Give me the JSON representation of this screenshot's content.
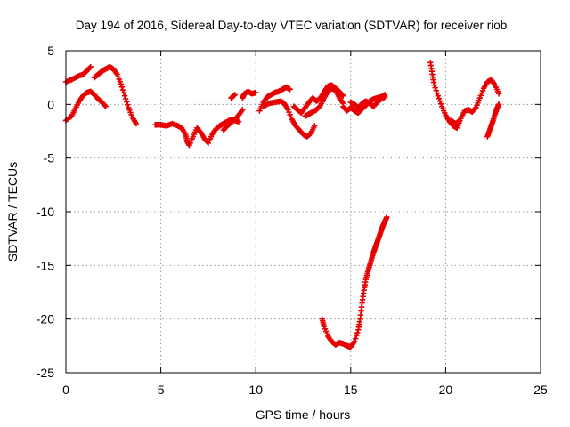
{
  "chart_data": {
    "type": "scatter",
    "title": "Day 194 of 2016, Sidereal Day-to-day VTEC variation (SDTVAR) for receiver riob",
    "xlabel": "GPS time / hours",
    "ylabel": "SDTVAR / TECUs",
    "xlim": [
      0,
      25
    ],
    "ylim": [
      -25,
      5
    ],
    "xticks": [
      "0",
      "5",
      "10",
      "15",
      "20",
      "25"
    ],
    "yticks": [
      "5",
      "0",
      "-5",
      "-10",
      "-15",
      "-20",
      "-25"
    ],
    "grid": true,
    "marker": "plus",
    "color": "#e60000",
    "segments": [
      {
        "points": [
          [
            0,
            2.1
          ],
          [
            0.3,
            2.3
          ],
          [
            0.6,
            2.6
          ],
          [
            0.9,
            2.8
          ],
          [
            1.1,
            3.1
          ],
          [
            1.3,
            3.5
          ]
        ]
      },
      {
        "points": [
          [
            0,
            -1.5
          ],
          [
            0.3,
            -1.1
          ],
          [
            0.5,
            -0.4
          ],
          [
            0.7,
            0.3
          ],
          [
            0.9,
            0.8
          ],
          [
            1.1,
            1.1
          ],
          [
            1.3,
            1.2
          ],
          [
            1.5,
            0.9
          ],
          [
            1.7,
            0.5
          ],
          [
            1.9,
            0.2
          ],
          [
            2.1,
            -0.2
          ]
        ]
      },
      {
        "points": [
          [
            1.5,
            2.5
          ],
          [
            1.7,
            2.8
          ],
          [
            1.9,
            3.1
          ],
          [
            2.1,
            3.3
          ],
          [
            2.3,
            3.5
          ],
          [
            2.5,
            3.3
          ],
          [
            2.7,
            2.8
          ],
          [
            2.9,
            1.9
          ],
          [
            3.1,
            0.8
          ],
          [
            3.3,
            -0.3
          ],
          [
            3.5,
            -1.2
          ],
          [
            3.7,
            -1.8
          ]
        ]
      },
      {
        "points": [
          [
            4.7,
            -1.9
          ],
          [
            5.0,
            -1.9
          ],
          [
            5.3,
            -2.0
          ],
          [
            5.6,
            -1.8
          ],
          [
            5.9,
            -2.0
          ],
          [
            6.1,
            -2.2
          ],
          [
            6.3,
            -2.8
          ],
          [
            6.4,
            -3.5
          ],
          [
            6.5,
            -3.8
          ],
          [
            6.7,
            -3.0
          ],
          [
            6.9,
            -2.2
          ],
          [
            7.1,
            -2.6
          ],
          [
            7.3,
            -3.2
          ],
          [
            7.5,
            -3.6
          ],
          [
            7.7,
            -2.8
          ],
          [
            7.9,
            -2.3
          ],
          [
            8.1,
            -2.0
          ],
          [
            8.3,
            -1.8
          ],
          [
            8.5,
            -1.6
          ],
          [
            8.7,
            -1.4
          ],
          [
            8.9,
            -1.5
          ],
          [
            9.1,
            -1.6
          ]
        ]
      },
      {
        "points": [
          [
            8.3,
            -2.4
          ],
          [
            8.5,
            -2.0
          ],
          [
            8.7,
            -1.7
          ],
          [
            8.9,
            -1.4
          ],
          [
            9.1,
            -1.0
          ],
          [
            9.3,
            -0.5
          ]
        ]
      },
      {
        "points": [
          [
            8.7,
            0.6
          ],
          [
            8.9,
            0.9
          ]
        ]
      },
      {
        "points": [
          [
            9.3,
            0.6
          ],
          [
            9.4,
            1.0
          ],
          [
            9.6,
            1.2
          ],
          [
            9.8,
            1.0
          ],
          [
            10.0,
            1.1
          ]
        ]
      },
      {
        "points": [
          [
            10.2,
            -0.6
          ],
          [
            10.4,
            0.2
          ],
          [
            10.6,
            0.7
          ],
          [
            10.8,
            0.9
          ],
          [
            11.0,
            1.1
          ],
          [
            11.2,
            1.2
          ],
          [
            11.4,
            1.4
          ],
          [
            11.6,
            1.6
          ],
          [
            11.8,
            1.4
          ]
        ]
      },
      {
        "points": [
          [
            10.4,
            -0.2
          ],
          [
            10.7,
            0.1
          ],
          [
            11.0,
            0.2
          ],
          [
            11.3,
            0.3
          ],
          [
            11.5,
            0.1
          ],
          [
            11.7,
            -0.5
          ],
          [
            11.9,
            -1.4
          ],
          [
            12.1,
            -2.0
          ],
          [
            12.3,
            -2.4
          ],
          [
            12.5,
            -2.8
          ],
          [
            12.7,
            -3.0
          ],
          [
            12.9,
            -2.7
          ],
          [
            13.1,
            -2.0
          ]
        ]
      },
      {
        "points": [
          [
            12.0,
            -0.2
          ],
          [
            12.2,
            -0.5
          ],
          [
            12.4,
            -0.8
          ],
          [
            12.6,
            -0.3
          ],
          [
            12.8,
            0.2
          ],
          [
            13.0,
            0.6
          ],
          [
            13.2,
            0.3
          ],
          [
            13.4,
            0.6
          ],
          [
            13.6,
            1.2
          ],
          [
            13.8,
            1.7
          ],
          [
            14.0,
            1.8
          ],
          [
            14.2,
            1.5
          ],
          [
            14.4,
            1.2
          ],
          [
            14.6,
            0.8
          ]
        ]
      },
      {
        "points": [
          [
            12.6,
            -1.1
          ],
          [
            12.8,
            -0.9
          ],
          [
            13.0,
            -0.7
          ],
          [
            13.2,
            -0.5
          ],
          [
            13.4,
            -0.1
          ],
          [
            13.6,
            0.6
          ],
          [
            13.8,
            1.2
          ],
          [
            14.0,
            1.5
          ],
          [
            14.2,
            1.3
          ],
          [
            14.4,
            0.6
          ],
          [
            14.6,
            0.1
          ]
        ]
      },
      {
        "points": [
          [
            14.6,
            -0.2
          ],
          [
            14.8,
            -0.6
          ],
          [
            15.0,
            -0.3
          ],
          [
            15.2,
            -0.6
          ],
          [
            15.4,
            -0.8
          ],
          [
            15.6,
            -0.4
          ],
          [
            15.8,
            -0.1
          ],
          [
            16.0,
            0.3
          ],
          [
            16.2,
            0.5
          ],
          [
            16.4,
            0.6
          ],
          [
            16.6,
            0.7
          ],
          [
            16.8,
            0.9
          ]
        ]
      },
      {
        "points": [
          [
            15.0,
            0.2
          ],
          [
            15.2,
            0.0
          ],
          [
            15.4,
            -0.3
          ],
          [
            15.6,
            0.1
          ],
          [
            15.8,
            0.3
          ],
          [
            16.0,
            0.1
          ],
          [
            16.2,
            -0.2
          ],
          [
            16.4,
            0.2
          ],
          [
            16.6,
            0.5
          ],
          [
            16.8,
            0.7
          ]
        ]
      },
      {
        "points": [
          [
            13.5,
            -20.0
          ],
          [
            13.6,
            -20.7
          ],
          [
            13.8,
            -21.6
          ],
          [
            14.0,
            -22.1
          ],
          [
            14.2,
            -22.4
          ],
          [
            14.4,
            -22.2
          ],
          [
            14.6,
            -22.3
          ],
          [
            14.8,
            -22.5
          ],
          [
            15.0,
            -22.6
          ],
          [
            15.2,
            -22.1
          ],
          [
            15.4,
            -21.0
          ],
          [
            15.5,
            -20.0
          ],
          [
            15.6,
            -18.5
          ],
          [
            15.7,
            -17.3
          ],
          [
            15.8,
            -16.3
          ],
          [
            15.9,
            -15.6
          ],
          [
            16.0,
            -15.0
          ],
          [
            16.1,
            -14.4
          ],
          [
            16.2,
            -13.8
          ],
          [
            16.3,
            -13.3
          ],
          [
            16.4,
            -12.8
          ],
          [
            16.5,
            -12.3
          ],
          [
            16.6,
            -11.8
          ],
          [
            16.7,
            -11.3
          ],
          [
            16.8,
            -10.9
          ],
          [
            16.9,
            -10.5
          ]
        ]
      },
      {
        "points": [
          [
            19.2,
            3.9
          ],
          [
            19.3,
            2.8
          ],
          [
            19.4,
            1.8
          ],
          [
            19.6,
            0.8
          ],
          [
            19.8,
            -0.2
          ],
          [
            20.0,
            -1.0
          ],
          [
            20.2,
            -1.6
          ],
          [
            20.4,
            -2.0
          ],
          [
            20.6,
            -2.2
          ],
          [
            20.8,
            -1.3
          ],
          [
            21.0,
            -0.6
          ],
          [
            21.2,
            -0.5
          ],
          [
            21.4,
            -0.7
          ],
          [
            21.6,
            -0.3
          ],
          [
            21.8,
            0.6
          ],
          [
            22.0,
            1.5
          ],
          [
            22.2,
            2.1
          ],
          [
            22.4,
            2.3
          ],
          [
            22.6,
            1.8
          ],
          [
            22.8,
            1.0
          ]
        ]
      },
      {
        "points": [
          [
            20.3,
            -1.5
          ],
          [
            20.5,
            -1.8
          ],
          [
            20.7,
            -1.6
          ]
        ]
      },
      {
        "points": [
          [
            22.2,
            -3.0
          ],
          [
            22.3,
            -2.5
          ],
          [
            22.4,
            -2.0
          ],
          [
            22.5,
            -1.5
          ],
          [
            22.6,
            -0.9
          ],
          [
            22.7,
            -0.4
          ],
          [
            22.8,
            0.0
          ]
        ]
      }
    ]
  }
}
